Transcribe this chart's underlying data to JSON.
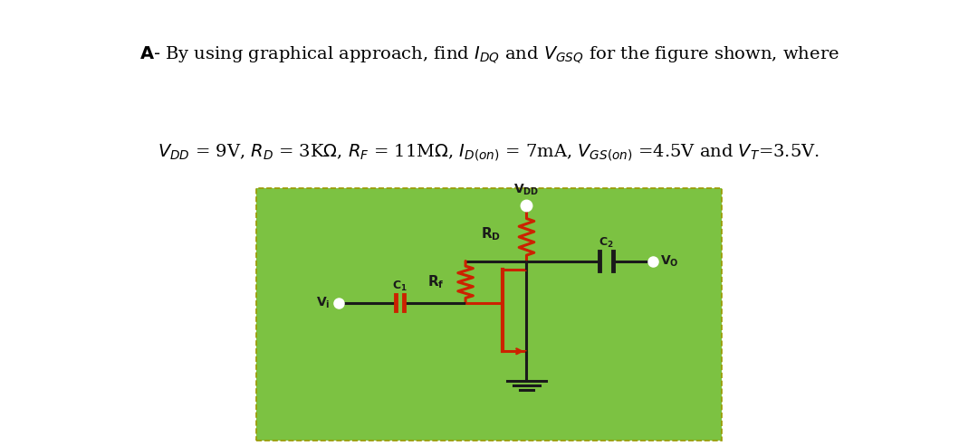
{
  "bg_color": "#7cc242",
  "line_color_black": "#1a1a1a",
  "line_color_red": "#cc2200",
  "text_color": "#000000",
  "white": "#ffffff",
  "fig_bg": "#ffffff",
  "border_color": "#999900"
}
